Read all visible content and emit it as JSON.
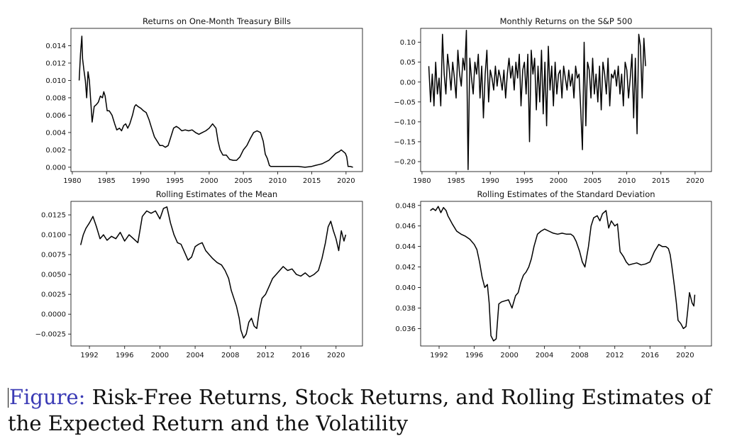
{
  "chart_data": [
    {
      "type": "line",
      "title": "Returns on One-Month Treasury Bills",
      "xlabel": "",
      "ylabel": "",
      "xlim": [
        1979.8,
        2022.4
      ],
      "ylim": [
        -0.0005,
        0.016
      ],
      "xticks": [
        1980,
        1985,
        1990,
        1995,
        2000,
        2005,
        2010,
        2015,
        2020
      ],
      "xtick_labels": [
        "1980",
        "1985",
        "1990",
        "1995",
        "2000",
        "2005",
        "2010",
        "2015",
        "2020"
      ],
      "yticks": [
        0.0,
        0.002,
        0.004,
        0.006,
        0.008,
        0.01,
        0.012,
        0.014
      ],
      "ytick_labels": [
        "0.000",
        "0.002",
        "0.004",
        "0.006",
        "0.008",
        "0.010",
        "0.012",
        "0.014"
      ],
      "grid": false,
      "series": [
        {
          "color": "#000000",
          "x": [
            1981.0,
            1981.2,
            1981.4,
            1981.5,
            1981.7,
            1981.9,
            1982.1,
            1982.3,
            1982.5,
            1982.7,
            1982.9,
            1983.2,
            1983.5,
            1983.8,
            1984.1,
            1984.4,
            1984.6,
            1984.8,
            1985.1,
            1985.4,
            1985.8,
            1986.2,
            1986.5,
            1986.9,
            1987.2,
            1987.5,
            1987.8,
            1988.1,
            1988.4,
            1988.8,
            1989.1,
            1989.3,
            1989.6,
            1990.0,
            1990.4,
            1990.8,
            1991.2,
            1991.6,
            1992.0,
            1992.4,
            1992.8,
            1993.2,
            1993.6,
            1994.0,
            1994.4,
            1994.8,
            1995.2,
            1995.6,
            1996.0,
            1996.5,
            1997.0,
            1997.5,
            1998.0,
            1998.5,
            1999.0,
            1999.5,
            2000.0,
            2000.5,
            2001.0,
            2001.3,
            2001.6,
            2002.0,
            2002.5,
            2003.0,
            2003.5,
            2004.0,
            2004.5,
            2005.0,
            2005.5,
            2006.0,
            2006.5,
            2007.0,
            2007.5,
            2007.9,
            2008.2,
            2008.5,
            2008.8,
            2009.0,
            2009.5,
            2010.0,
            2011.0,
            2012.0,
            2013.0,
            2014.0,
            2015.0,
            2015.5,
            2016.0,
            2016.5,
            2017.0,
            2017.5,
            2018.0,
            2018.5,
            2019.0,
            2019.3,
            2019.6,
            2019.9,
            2020.1,
            2020.3,
            2020.6,
            2021.0
          ],
          "y": [
            0.01,
            0.0131,
            0.0151,
            0.0125,
            0.0112,
            0.01,
            0.008,
            0.011,
            0.01,
            0.0075,
            0.0052,
            0.007,
            0.0072,
            0.0075,
            0.0082,
            0.008,
            0.0087,
            0.0082,
            0.0065,
            0.0065,
            0.006,
            0.005,
            0.0043,
            0.0045,
            0.0042,
            0.0048,
            0.005,
            0.0045,
            0.005,
            0.006,
            0.007,
            0.0072,
            0.007,
            0.0068,
            0.0065,
            0.0063,
            0.0055,
            0.0045,
            0.0035,
            0.003,
            0.0025,
            0.0025,
            0.0023,
            0.0025,
            0.0035,
            0.0045,
            0.0047,
            0.0045,
            0.0042,
            0.0043,
            0.0042,
            0.0043,
            0.004,
            0.0038,
            0.004,
            0.0042,
            0.0045,
            0.005,
            0.0045,
            0.003,
            0.002,
            0.0014,
            0.0014,
            0.0009,
            0.0008,
            0.0008,
            0.0012,
            0.002,
            0.0025,
            0.0033,
            0.004,
            0.0042,
            0.004,
            0.003,
            0.0015,
            0.001,
            0.0002,
            0.0001,
            0.0001,
            0.0001,
            0.0001,
            0.0001,
            0.0001,
            0.0,
            0.0001,
            0.0002,
            0.0003,
            0.0004,
            0.0006,
            0.0008,
            0.0012,
            0.0016,
            0.0018,
            0.002,
            0.0018,
            0.0016,
            0.0012,
            0.0001,
            0.0001,
            0.0
          ]
        }
      ]
    },
    {
      "type": "line",
      "title": "Monthly Returns on the S&P 500",
      "xlabel": "",
      "ylabel": "",
      "xlim": [
        1979.8,
        2022.4
      ],
      "ylim": [
        -0.225,
        0.135
      ],
      "xticks": [
        1980,
        1985,
        1990,
        1995,
        2000,
        2005,
        2010,
        2015,
        2020
      ],
      "xtick_labels": [
        "1980",
        "1985",
        "1990",
        "1995",
        "2000",
        "2005",
        "2010",
        "2015",
        "2020"
      ],
      "yticks": [
        -0.2,
        -0.15,
        -0.1,
        -0.05,
        0.0,
        0.05,
        0.1
      ],
      "ytick_labels": [
        "−0.20",
        "−0.15",
        "−0.10",
        "−0.05",
        "0.00",
        "0.05",
        "0.10"
      ],
      "grid": false,
      "series": [
        {
          "color": "#000000",
          "x_start": 1981.0,
          "x_step": 0.25,
          "y": [
            0.04,
            -0.05,
            0.02,
            -0.06,
            0.05,
            -0.03,
            0.01,
            -0.06,
            0.12,
            0.02,
            -0.03,
            0.07,
            0.03,
            -0.02,
            0.05,
            0.01,
            -0.04,
            0.08,
            0.02,
            -0.01,
            0.06,
            0.03,
            0.13,
            -0.22,
            0.06,
            0.01,
            -0.03,
            0.05,
            0.02,
            0.07,
            -0.04,
            0.04,
            -0.09,
            0.02,
            0.08,
            -0.05,
            0.03,
            0.01,
            -0.02,
            0.04,
            -0.01,
            0.03,
            0.01,
            -0.02,
            0.03,
            -0.04,
            0.02,
            0.06,
            0.01,
            0.04,
            -0.02,
            0.05,
            0.01,
            0.07,
            -0.06,
            0.03,
            0.05,
            -0.03,
            0.07,
            -0.15,
            0.08,
            0.02,
            0.06,
            -0.07,
            0.04,
            -0.05,
            0.08,
            -0.08,
            0.05,
            -0.11,
            0.09,
            -0.02,
            0.04,
            -0.06,
            0.05,
            -0.03,
            0.02,
            0.03,
            -0.04,
            0.04,
            0.01,
            -0.02,
            0.03,
            -0.01,
            0.02,
            -0.04,
            0.04,
            0.01,
            0.02,
            -0.07,
            -0.17,
            0.1,
            -0.11,
            0.05,
            0.03,
            -0.04,
            0.06,
            -0.03,
            0.02,
            -0.05,
            0.04,
            -0.07,
            0.05,
            0.02,
            -0.03,
            0.06,
            -0.06,
            0.02,
            0.01,
            0.03,
            -0.01,
            0.04,
            -0.03,
            0.02,
            -0.06,
            0.05,
            0.03,
            -0.04,
            0.01,
            0.07,
            -0.09,
            0.06,
            -0.13,
            0.12,
            0.09,
            -0.04,
            0.11,
            0.04
          ]
        }
      ]
    },
    {
      "type": "line",
      "title": "Rolling Estimates of the Mean",
      "xlabel": "",
      "ylabel": "",
      "xlim": [
        1989.9,
        2023.0
      ],
      "ylim": [
        -0.004,
        0.0142
      ],
      "xticks": [
        1992,
        1996,
        2000,
        2004,
        2008,
        2012,
        2016,
        2020
      ],
      "xtick_labels": [
        "1992",
        "1996",
        "2000",
        "2004",
        "2008",
        "2012",
        "2016",
        "2020"
      ],
      "yticks": [
        -0.0025,
        0.0,
        0.0025,
        0.005,
        0.0075,
        0.01,
        0.0125
      ],
      "ytick_labels": [
        "−0.0025",
        "0.0000",
        "0.0025",
        "0.0050",
        "0.0075",
        "0.0100",
        "0.0125"
      ],
      "grid": false,
      "series": [
        {
          "color": "#000000",
          "x": [
            1991.0,
            1991.3,
            1991.6,
            1992.0,
            1992.4,
            1992.8,
            1993.2,
            1993.6,
            1994.0,
            1994.5,
            1995.0,
            1995.5,
            1996.0,
            1996.5,
            1997.0,
            1997.5,
            1998.0,
            1998.5,
            1999.0,
            1999.5,
            2000.0,
            2000.4,
            2000.8,
            2001.2,
            2001.6,
            2002.0,
            2002.4,
            2002.8,
            2003.2,
            2003.6,
            2004.0,
            2004.4,
            2004.8,
            2005.2,
            2005.6,
            2006.0,
            2006.5,
            2007.0,
            2007.4,
            2007.8,
            2008.1,
            2008.4,
            2008.7,
            2009.0,
            2009.2,
            2009.5,
            2009.8,
            2010.1,
            2010.4,
            2010.7,
            2011.0,
            2011.3,
            2011.6,
            2012.0,
            2012.4,
            2012.8,
            2013.2,
            2013.6,
            2014.0,
            2014.5,
            2015.0,
            2015.5,
            2016.0,
            2016.5,
            2017.0,
            2017.5,
            2018.0,
            2018.4,
            2018.8,
            2019.1,
            2019.4,
            2019.7,
            2020.0,
            2020.3,
            2020.6,
            2020.9,
            2021.1
          ],
          "y": [
            0.0087,
            0.01,
            0.0108,
            0.0115,
            0.0123,
            0.011,
            0.0095,
            0.01,
            0.0093,
            0.0098,
            0.0095,
            0.0103,
            0.0092,
            0.01,
            0.0095,
            0.009,
            0.0123,
            0.013,
            0.0127,
            0.013,
            0.012,
            0.0133,
            0.0135,
            0.0115,
            0.01,
            0.009,
            0.0088,
            0.0078,
            0.0068,
            0.0072,
            0.0085,
            0.0088,
            0.009,
            0.008,
            0.0075,
            0.007,
            0.0065,
            0.0062,
            0.0055,
            0.0045,
            0.003,
            0.002,
            0.001,
            -0.0005,
            -0.002,
            -0.003,
            -0.0025,
            -0.001,
            -0.0005,
            -0.0015,
            -0.0018,
            0.0005,
            0.002,
            0.0025,
            0.0035,
            0.0045,
            0.005,
            0.0055,
            0.006,
            0.0055,
            0.0057,
            0.005,
            0.0048,
            0.0052,
            0.0047,
            0.005,
            0.0055,
            0.007,
            0.009,
            0.011,
            0.0117,
            0.0105,
            0.0095,
            0.008,
            0.0105,
            0.0092,
            0.01
          ]
        }
      ]
    },
    {
      "type": "line",
      "title": "Rolling Estimates of the Standard Deviation",
      "xlabel": "",
      "ylabel": "",
      "xlim": [
        1989.9,
        2023.0
      ],
      "ylim": [
        0.0343,
        0.0484
      ],
      "xticks": [
        1992,
        1996,
        2000,
        2004,
        2008,
        2012,
        2016,
        2020
      ],
      "xtick_labels": [
        "1992",
        "1996",
        "2000",
        "2004",
        "2008",
        "2012",
        "2016",
        "2020"
      ],
      "yticks": [
        0.036,
        0.038,
        0.04,
        0.042,
        0.044,
        0.046,
        0.048
      ],
      "ytick_labels": [
        "0.036",
        "0.038",
        "0.040",
        "0.042",
        "0.044",
        "0.046",
        "0.048"
      ],
      "grid": false,
      "series": [
        {
          "color": "#000000",
          "x": [
            1991.0,
            1991.3,
            1991.6,
            1991.9,
            1992.2,
            1992.5,
            1992.8,
            1993.0,
            1993.5,
            1994.0,
            1994.5,
            1995.0,
            1995.5,
            1996.0,
            1996.3,
            1996.6,
            1996.9,
            1997.2,
            1997.5,
            1997.7,
            1997.9,
            1998.2,
            1998.5,
            1998.8,
            1999.1,
            1999.5,
            1999.9,
            2000.3,
            2000.7,
            2001.0,
            2001.3,
            2001.6,
            2001.9,
            2002.2,
            2002.5,
            2002.8,
            2003.2,
            2003.6,
            2004.0,
            2004.5,
            2005.0,
            2005.5,
            2006.0,
            2006.5,
            2007.0,
            2007.3,
            2007.6,
            2008.0,
            2008.3,
            2008.6,
            2009.0,
            2009.3,
            2009.6,
            2010.0,
            2010.3,
            2010.6,
            2011.0,
            2011.3,
            2011.6,
            2012.0,
            2012.3,
            2012.6,
            2013.0,
            2013.3,
            2013.6,
            2014.0,
            2014.5,
            2015.0,
            2015.5,
            2016.0,
            2016.5,
            2017.0,
            2017.4,
            2017.8,
            2018.1,
            2018.3,
            2018.5,
            2018.8,
            2019.0,
            2019.2,
            2019.5,
            2019.8,
            2020.1,
            2020.3,
            2020.5,
            2020.8,
            2021.0,
            2021.1
          ],
          "y": [
            0.0475,
            0.0477,
            0.0475,
            0.0479,
            0.0473,
            0.0478,
            0.0475,
            0.047,
            0.0462,
            0.0455,
            0.0452,
            0.045,
            0.0447,
            0.0442,
            0.0437,
            0.0425,
            0.041,
            0.04,
            0.0403,
            0.0385,
            0.0353,
            0.0348,
            0.035,
            0.0384,
            0.0386,
            0.0387,
            0.0388,
            0.038,
            0.0392,
            0.0395,
            0.0405,
            0.0412,
            0.0415,
            0.042,
            0.0428,
            0.044,
            0.0452,
            0.0455,
            0.0457,
            0.0455,
            0.0453,
            0.0452,
            0.0453,
            0.0452,
            0.0452,
            0.045,
            0.0445,
            0.0435,
            0.0425,
            0.042,
            0.044,
            0.046,
            0.0468,
            0.047,
            0.0465,
            0.0472,
            0.0475,
            0.0458,
            0.0465,
            0.046,
            0.0462,
            0.0435,
            0.043,
            0.0425,
            0.0422,
            0.0423,
            0.0424,
            0.0422,
            0.0423,
            0.0425,
            0.0435,
            0.0442,
            0.044,
            0.044,
            0.0438,
            0.0432,
            0.042,
            0.04,
            0.0385,
            0.0368,
            0.0365,
            0.036,
            0.0362,
            0.0378,
            0.0395,
            0.0385,
            0.0382,
            0.0393
          ]
        }
      ]
    }
  ],
  "caption": {
    "lead": "Figure:",
    "text": " Risk-Free Returns, Stock Returns, and Rolling Estimates of the Expected Return and the Volatility"
  }
}
